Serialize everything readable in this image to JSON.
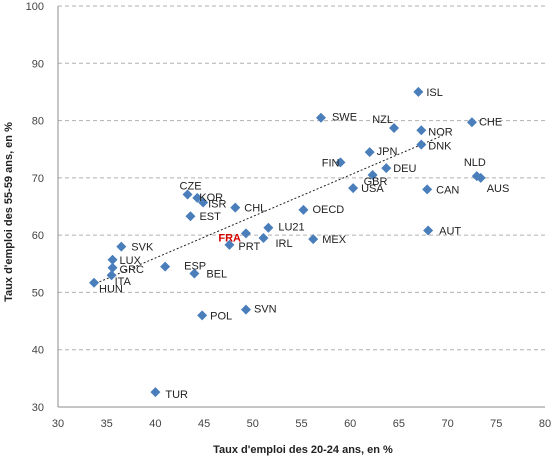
{
  "chart_data": {
    "type": "scatter",
    "xlabel": "Taux d'emploi des 20-24 ans, en %",
    "ylabel": "Taux d'emploi des 55-59 ans, en %",
    "xlim": [
      30,
      80
    ],
    "ylim": [
      30,
      100
    ],
    "xticks": [
      "30",
      "35",
      "40",
      "45",
      "50",
      "55",
      "60",
      "65",
      "70",
      "75",
      "80"
    ],
    "yticks": [
      "30",
      "40",
      "50",
      "60",
      "70",
      "80",
      "90",
      "100"
    ],
    "grid": "horizontal dashed",
    "marker_color": "#4a7ebb",
    "highlight_color": "#d40000",
    "trendline": {
      "x": [
        33.5,
        69.5
      ],
      "y": [
        51.3,
        77.4
      ]
    },
    "points": [
      {
        "label": "ISL",
        "x": 67.0,
        "y": 85.0
      },
      {
        "label": "SWE",
        "x": 57.0,
        "y": 80.5
      },
      {
        "label": "CHE",
        "x": 72.5,
        "y": 79.7
      },
      {
        "label": "NZL",
        "x": 64.5,
        "y": 78.7
      },
      {
        "label": "NOR",
        "x": 67.3,
        "y": 78.3
      },
      {
        "label": "DNK",
        "x": 67.3,
        "y": 75.8
      },
      {
        "label": "JPN",
        "x": 62.0,
        "y": 74.5
      },
      {
        "label": "FIN",
        "x": 59.0,
        "y": 72.7
      },
      {
        "label": "DEU",
        "x": 63.7,
        "y": 71.7
      },
      {
        "label": "GBR",
        "x": 62.3,
        "y": 70.5
      },
      {
        "label": "NLD",
        "x": 73.0,
        "y": 70.3
      },
      {
        "label": "AUS",
        "x": 73.4,
        "y": 70.0
      },
      {
        "label": "USA",
        "x": 60.3,
        "y": 68.2
      },
      {
        "label": "CAN",
        "x": 67.9,
        "y": 68.0
      },
      {
        "label": "CZE",
        "x": 43.3,
        "y": 67.1
      },
      {
        "label": "KOR",
        "x": 44.3,
        "y": 66.5
      },
      {
        "label": "ISR",
        "x": 44.9,
        "y": 65.7
      },
      {
        "label": "CHL",
        "x": 48.2,
        "y": 64.8
      },
      {
        "label": "OECD",
        "x": 55.2,
        "y": 64.4
      },
      {
        "label": "EST",
        "x": 43.6,
        "y": 63.3
      },
      {
        "label": "LU21",
        "x": 51.6,
        "y": 61.3
      },
      {
        "label": "FRA",
        "x": 49.3,
        "y": 60.3,
        "highlight": true
      },
      {
        "label": "AUT",
        "x": 68.0,
        "y": 60.8
      },
      {
        "label": "IRL",
        "x": 51.1,
        "y": 59.5
      },
      {
        "label": "MEX",
        "x": 56.2,
        "y": 59.3
      },
      {
        "label": "PRT",
        "x": 47.6,
        "y": 58.3
      },
      {
        "label": "SVK",
        "x": 36.5,
        "y": 58.0
      },
      {
        "label": "LUX",
        "x": 35.6,
        "y": 55.7
      },
      {
        "label": "GRC",
        "x": 35.6,
        "y": 54.3
      },
      {
        "label": "ESP",
        "x": 41.0,
        "y": 54.5
      },
      {
        "label": "ITA",
        "x": 35.5,
        "y": 53.0
      },
      {
        "label": "BEL",
        "x": 44.0,
        "y": 53.3
      },
      {
        "label": "HUN",
        "x": 33.7,
        "y": 51.7
      },
      {
        "label": "SVN",
        "x": 49.3,
        "y": 47.0
      },
      {
        "label": "POL",
        "x": 44.8,
        "y": 46.0
      },
      {
        "label": "TUR",
        "x": 40.0,
        "y": 32.6
      }
    ]
  }
}
